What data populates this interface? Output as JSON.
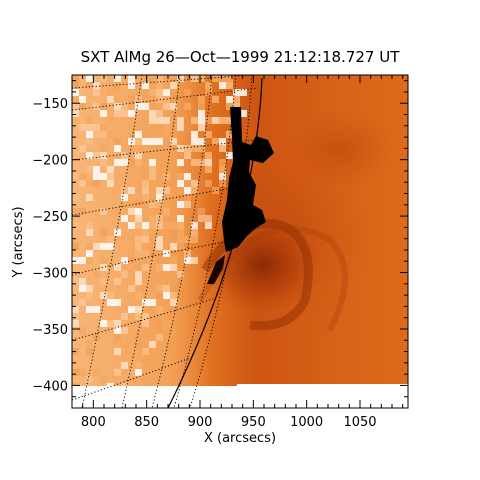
{
  "title": "SXT AlMg 26—Oct—1999 21:12:18.727 UT",
  "xlabel": "X (arcsecs)",
  "ylabel": "Y (arcsecs)",
  "colors": {
    "limb_dark": "#e8701a",
    "disk_light": "#f7b878",
    "loops": "#b8400a",
    "core": "#000000",
    "axes": "#000000",
    "background": "#ffffff"
  },
  "chart_data": {
    "type": "heatmap",
    "xlim": [
      780,
      1095
    ],
    "ylim": [
      -420,
      -125
    ],
    "xticks": [
      {
        "value": 800,
        "label": "800"
      },
      {
        "value": 850,
        "label": "850"
      },
      {
        "value": 900,
        "label": "900"
      },
      {
        "value": 950,
        "label": "950"
      },
      {
        "value": 1000,
        "label": "1000"
      },
      {
        "value": 1050,
        "label": "1050"
      }
    ],
    "yticks": [
      {
        "value": -150,
        "label": "−150"
      },
      {
        "value": -200,
        "label": "−200"
      },
      {
        "value": -250,
        "label": "−250"
      },
      {
        "value": -300,
        "label": "−300"
      },
      {
        "value": -350,
        "label": "−350"
      },
      {
        "value": -400,
        "label": "−400"
      }
    ]
  }
}
